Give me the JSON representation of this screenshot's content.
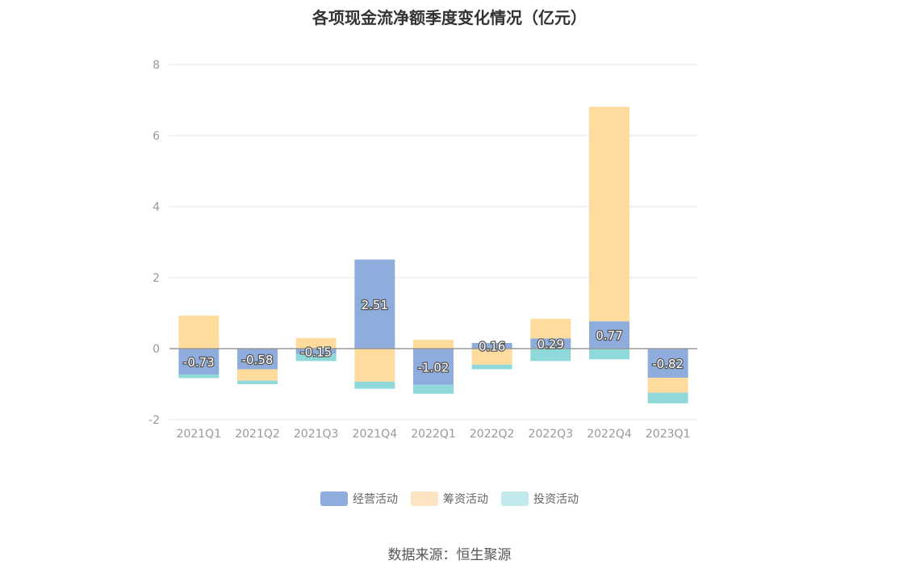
{
  "chart_data": {
    "type": "bar",
    "stacked": true,
    "title": "各项现金流净额季度变化情况（亿元）",
    "categories": [
      "2021Q1",
      "2021Q2",
      "2021Q3",
      "2021Q4",
      "2022Q1",
      "2022Q2",
      "2022Q3",
      "2022Q4",
      "2023Q1"
    ],
    "series": [
      {
        "name": "经营活动",
        "color": "#8eaddc",
        "values": [
          -0.73,
          -0.58,
          -0.15,
          2.51,
          -1.02,
          0.16,
          0.29,
          0.77,
          -0.82
        ],
        "labels": [
          "-0.73",
          "-0.58",
          "-0.15",
          "2.51",
          "-1.02",
          "0.16",
          "0.29",
          "0.77",
          "-0.82"
        ]
      },
      {
        "name": "筹资活动",
        "color": "#ffdb9e",
        "values": [
          0.93,
          -0.32,
          0.3,
          -0.93,
          0.25,
          -0.45,
          0.55,
          6.04,
          -0.42
        ]
      },
      {
        "name": "投资活动",
        "color": "#8fd9da",
        "values": [
          -0.1,
          -0.1,
          -0.2,
          -0.2,
          -0.25,
          -0.13,
          -0.35,
          -0.3,
          -0.3
        ]
      }
    ],
    "legend_colors": [
      "#8eaddc",
      "#fde4c2",
      "#c2e9ec"
    ],
    "ylim": [
      -2,
      8
    ],
    "yticks": [
      -2,
      0,
      2,
      4,
      6,
      8
    ],
    "grid": true,
    "legend_position": "bottom"
  },
  "source": "数据来源：恒生聚源"
}
